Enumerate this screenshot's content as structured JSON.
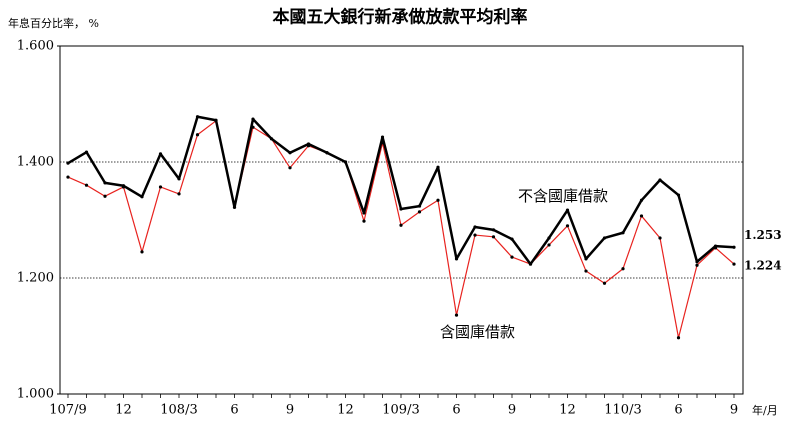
{
  "chart_data": {
    "type": "line",
    "title": "本國五大銀行新承做放款平均利率",
    "y_label": "年息百分比率， %",
    "x_label": "年/月",
    "categories": [
      "107/9",
      null,
      null,
      "12",
      null,
      null,
      "108/3",
      null,
      null,
      "6",
      null,
      null,
      "9",
      null,
      null,
      "12",
      null,
      null,
      "109/3",
      null,
      null,
      "6",
      null,
      null,
      "9",
      null,
      null,
      "12",
      null,
      null,
      "110/3",
      null,
      null,
      "6",
      null,
      null,
      "9"
    ],
    "series": [
      {
        "name": "不含國庫借款",
        "color": "#000000",
        "values": [
          1.398,
          1.417,
          1.364,
          1.359,
          1.34,
          1.414,
          1.371,
          1.478,
          1.472,
          1.322,
          1.474,
          1.44,
          1.416,
          1.431,
          1.416,
          1.4,
          1.312,
          1.443,
          1.319,
          1.324,
          1.391,
          1.233,
          1.288,
          1.283,
          1.267,
          1.224,
          1.269,
          1.317,
          1.233,
          1.269,
          1.278,
          1.334,
          1.369,
          1.343,
          1.228,
          1.255,
          1.253
        ]
      },
      {
        "name": "含國庫借款",
        "color": "#e8231f",
        "values": [
          1.374,
          1.36,
          1.341,
          1.357,
          1.245,
          1.357,
          1.345,
          1.447,
          1.471,
          1.322,
          1.46,
          1.44,
          1.39,
          1.428,
          1.416,
          1.4,
          1.298,
          1.433,
          1.291,
          1.314,
          1.334,
          1.136,
          1.274,
          1.271,
          1.236,
          1.224,
          1.257,
          1.29,
          1.212,
          1.191,
          1.216,
          1.307,
          1.269,
          1.097,
          1.222,
          1.252,
          1.224
        ]
      }
    ],
    "ylim": [
      1.0,
      1.6
    ],
    "yticks": [
      {
        "value": 1.0,
        "label": "1.000"
      },
      {
        "value": 1.2,
        "label": "1.200"
      },
      {
        "value": 1.4,
        "label": "1.400"
      },
      {
        "value": 1.6,
        "label": "1.600"
      }
    ],
    "grid": true
  }
}
